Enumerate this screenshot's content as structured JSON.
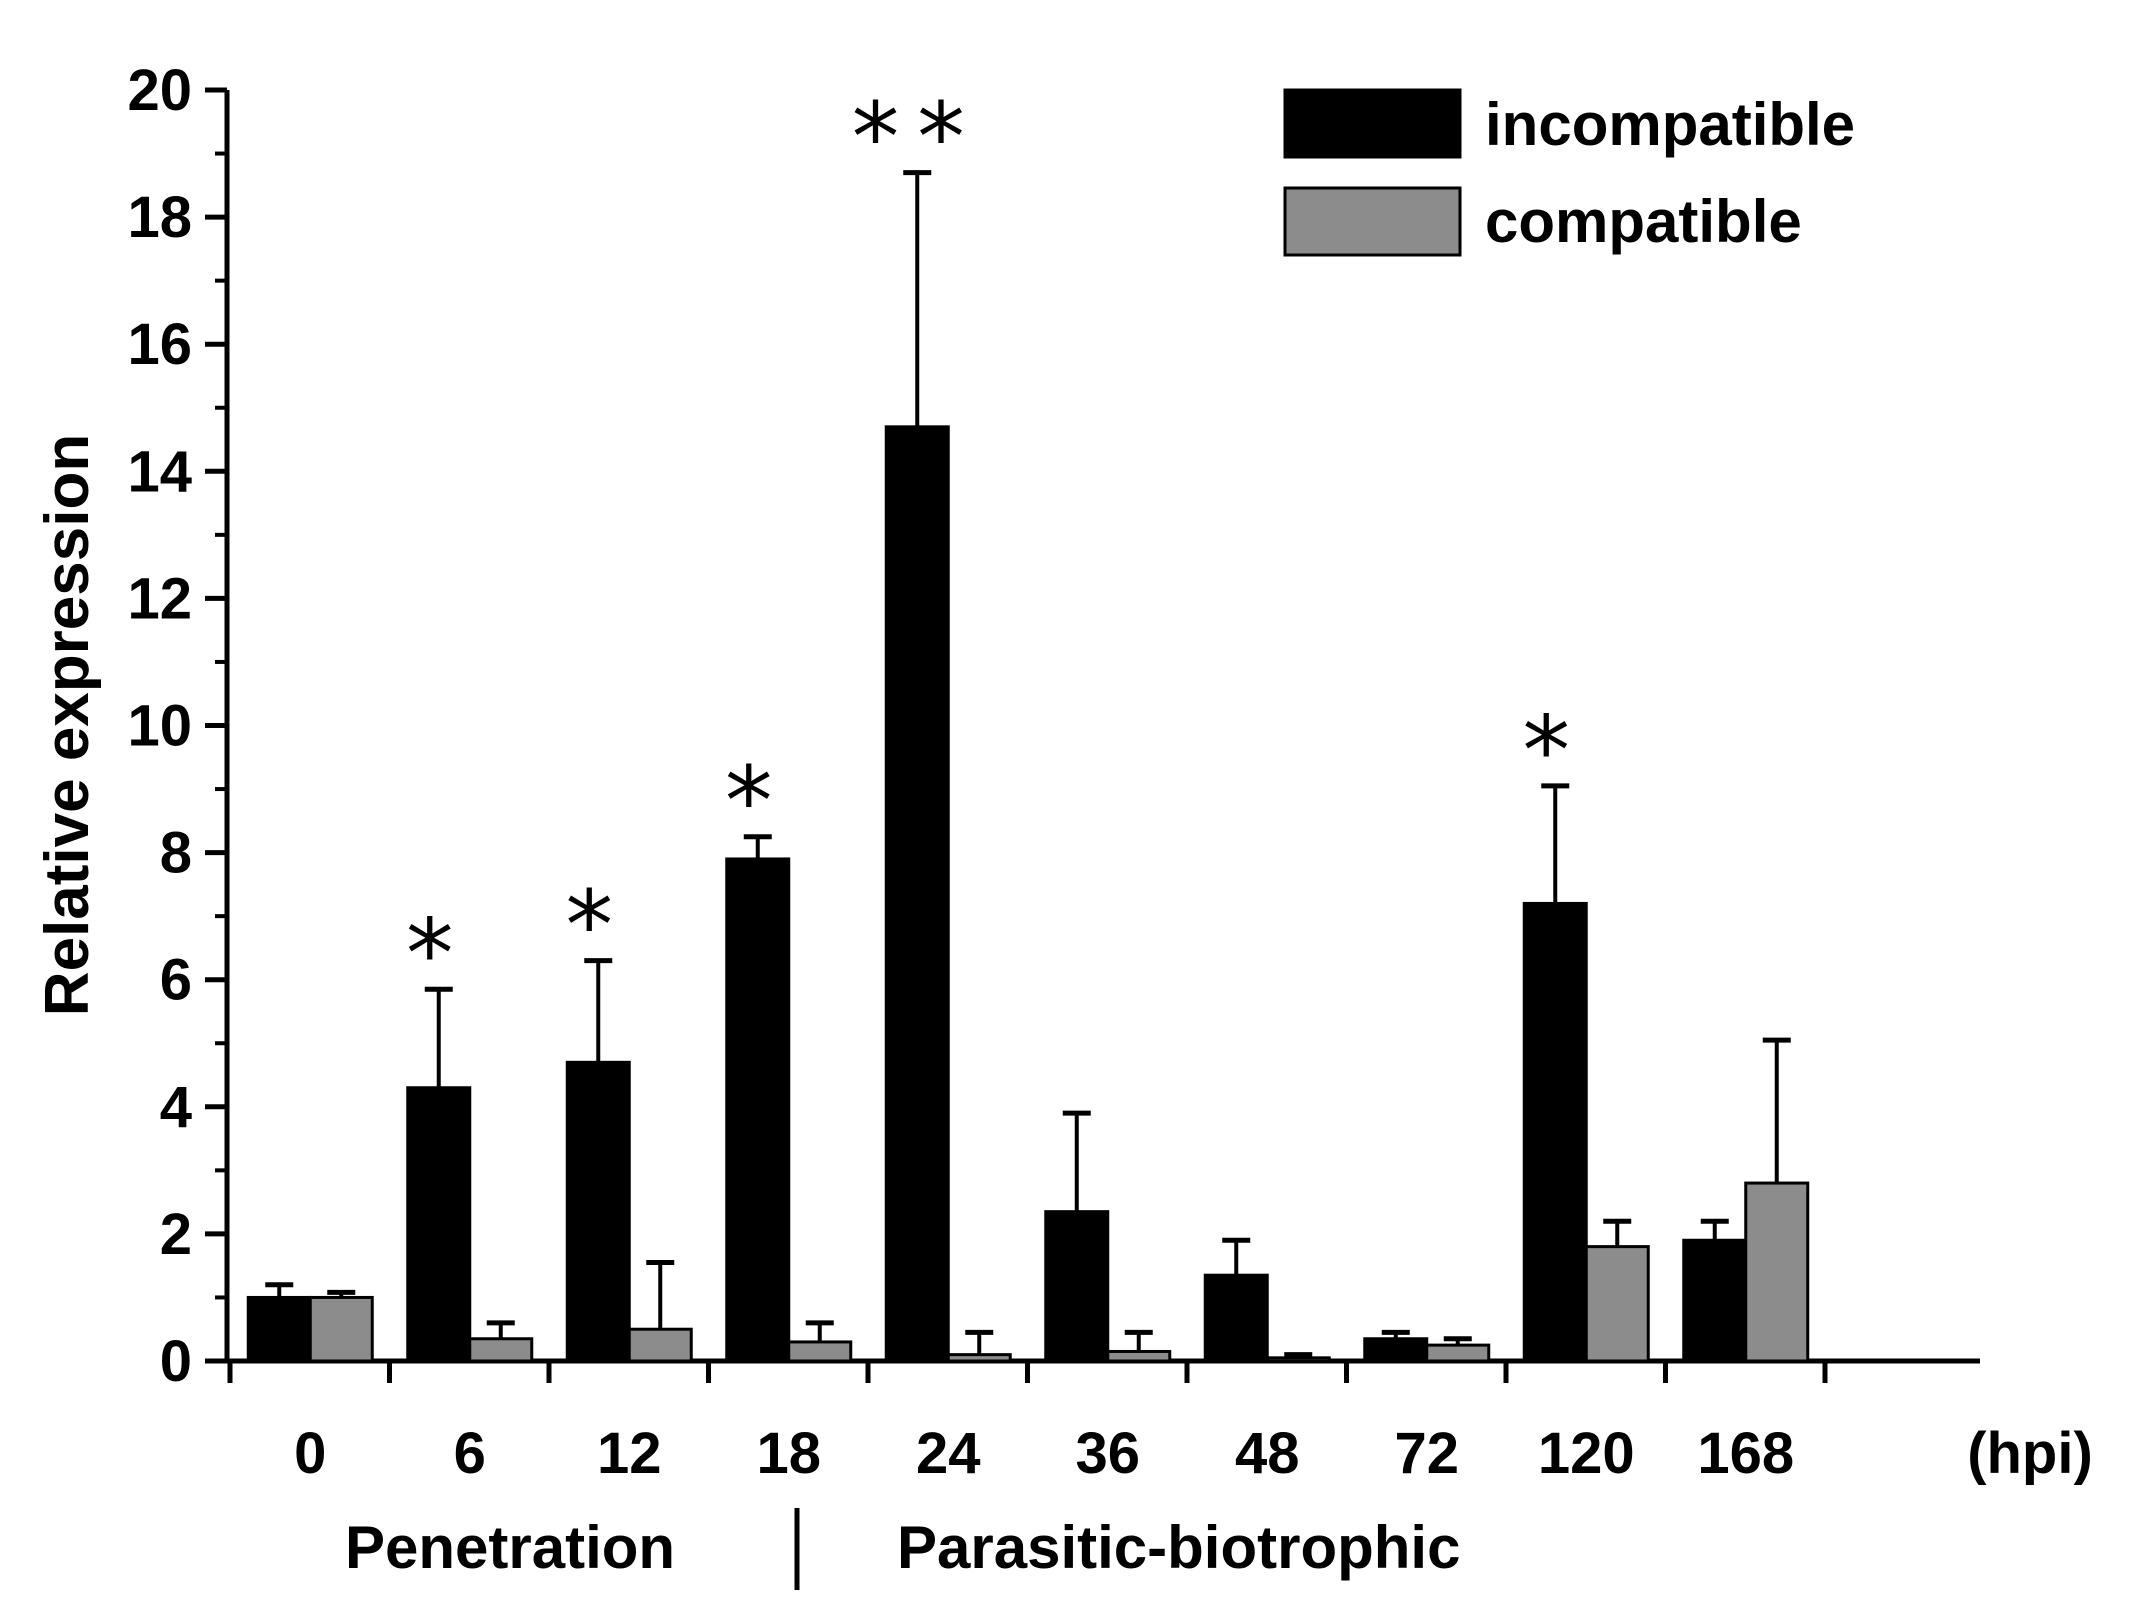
{
  "chart_data": {
    "type": "bar",
    "title": "",
    "xlabel": "",
    "x_unit": "(hpi)",
    "ylabel": "Relative expression",
    "ylim": [
      0,
      20
    ],
    "yticks": [
      0,
      2,
      4,
      6,
      8,
      10,
      12,
      14,
      16,
      18,
      20
    ],
    "grid": false,
    "legend_position": "top-right",
    "categories": [
      "0",
      "6",
      "12",
      "18",
      "24",
      "36",
      "48",
      "72",
      "120",
      "168"
    ],
    "series": [
      {
        "name": "incompatible",
        "color": "#000000",
        "values": [
          1.0,
          4.3,
          4.7,
          7.9,
          14.7,
          2.35,
          1.35,
          0.35,
          7.2,
          1.9
        ],
        "errors": [
          0.2,
          1.55,
          1.6,
          0.35,
          4.0,
          1.55,
          0.55,
          0.1,
          1.85,
          0.3
        ],
        "annotations": [
          "",
          "*",
          "*",
          "*",
          "**",
          "",
          "",
          "",
          "*",
          ""
        ]
      },
      {
        "name": "compatible",
        "color": "#8c8c8c",
        "values": [
          1.0,
          0.35,
          0.5,
          0.3,
          0.1,
          0.15,
          0.05,
          0.25,
          1.8,
          2.8
        ],
        "errors": [
          0.08,
          0.25,
          1.05,
          0.3,
          0.35,
          0.3,
          0.05,
          0.1,
          0.4,
          2.25
        ]
      }
    ],
    "phases": [
      "Penetration",
      "Parasitic-biotrophic"
    ]
  }
}
